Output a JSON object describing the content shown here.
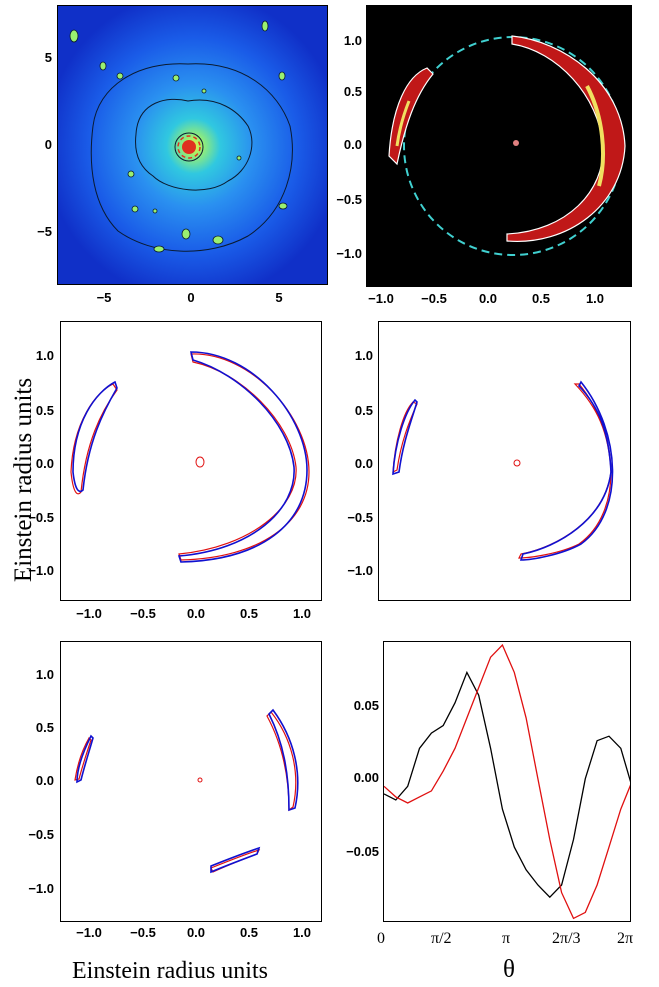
{
  "figure": {
    "ylabel": "Einstein radius units",
    "xlabel_left": "Einstein radius units",
    "xlabel_right": "θ"
  },
  "panel_a": {
    "x_ticks": [
      "−5",
      "0",
      "5"
    ],
    "y_ticks": [
      "5",
      "0",
      "−5"
    ],
    "colormap": [
      "#1030d0",
      "#1a6cf0",
      "#30c8e0",
      "#9af070",
      "#f0f040",
      "#e03020"
    ]
  },
  "panel_b": {
    "x_ticks": [
      "−1.0",
      "−0.5",
      "0.0",
      "0.5",
      "1.0"
    ],
    "y_ticks": [
      "1.0",
      "0.5",
      "0.0",
      "−0.5",
      "−1.0"
    ],
    "circle_color": "#40d0d0",
    "arc_color": "#c01818"
  },
  "panel_c": {
    "x_ticks": [
      "−1.0",
      "−0.5",
      "0.0",
      "0.5",
      "1.0"
    ],
    "y_ticks": [
      "1.0",
      "0.5",
      "0.0",
      "−0.5",
      "−1.0"
    ]
  },
  "panel_d": {
    "y_ticks": [
      "1.0",
      "0.5",
      "0.0",
      "−0.5",
      "−1.0"
    ]
  },
  "panel_e": {
    "x_ticks": [
      "−1.0",
      "−0.5",
      "0.0",
      "0.5",
      "1.0"
    ],
    "y_ticks": [
      "1.0",
      "0.5",
      "0.0",
      "−0.5",
      "−1.0"
    ]
  },
  "chart_data": {
    "type": "line",
    "xlabel": "θ",
    "ylabel": "",
    "x_ticks": [
      "0",
      "π/2",
      "π",
      "2π/3",
      "2π"
    ],
    "y_ticks": [
      "0.05",
      "0.00",
      "−0.05"
    ],
    "xlim": [
      0,
      6.2832
    ],
    "ylim": [
      -0.095,
      0.09
    ],
    "series": [
      {
        "color": "#000000",
        "x": [
          0,
          0.3,
          0.6,
          0.9,
          1.2,
          1.5,
          1.8,
          2.1,
          2.4,
          2.7,
          3.0,
          3.3,
          3.6,
          3.9,
          4.2,
          4.5,
          4.8,
          5.1,
          5.4,
          5.7,
          6.0,
          6.28
        ],
        "y": [
          -0.01,
          -0.014,
          -0.005,
          0.02,
          0.03,
          0.035,
          0.05,
          0.07,
          0.055,
          0.02,
          -0.02,
          -0.045,
          -0.06,
          -0.07,
          -0.078,
          -0.07,
          -0.04,
          0.0,
          0.025,
          0.028,
          0.02,
          -0.005
        ]
      },
      {
        "color": "#e01010",
        "x": [
          0,
          0.3,
          0.6,
          0.9,
          1.2,
          1.5,
          1.8,
          2.1,
          2.4,
          2.7,
          3.0,
          3.3,
          3.6,
          3.9,
          4.2,
          4.5,
          4.8,
          5.1,
          5.4,
          5.7,
          6.0,
          6.28
        ],
        "y": [
          -0.005,
          -0.012,
          -0.016,
          -0.012,
          -0.008,
          0.005,
          0.02,
          0.04,
          0.06,
          0.08,
          0.088,
          0.07,
          0.04,
          0.0,
          -0.04,
          -0.075,
          -0.092,
          -0.088,
          -0.07,
          -0.045,
          -0.02,
          -0.002
        ]
      }
    ]
  }
}
